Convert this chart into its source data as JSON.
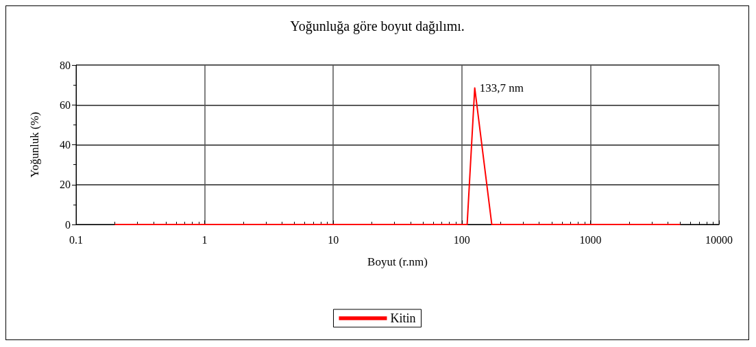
{
  "chart_data": {
    "type": "line",
    "title": "Yoğunluğa göre boyut dağılımı.",
    "xlabel": "Boyut (r.nm)",
    "ylabel": "Yoğunluk (%)",
    "log": "x",
    "xlim": [
      0.1,
      10000
    ],
    "xticks": [
      0.1,
      1,
      10,
      100,
      1000,
      10000
    ],
    "ylim": [
      0,
      80
    ],
    "yticks": [
      0,
      20,
      40,
      60,
      80
    ],
    "series": [
      {
        "name": "Kitin",
        "color": "#ff0000",
        "x": [
          0.2,
          110,
          126,
          171,
          5000
        ],
        "values": [
          0,
          0,
          68.5,
          0,
          0
        ]
      }
    ],
    "annotations": [
      {
        "text": "133,7 nm",
        "x": 126,
        "y": 68.5
      }
    ],
    "grid": true,
    "legend": "bottom",
    "marker": "none",
    "line_style": "solid"
  }
}
